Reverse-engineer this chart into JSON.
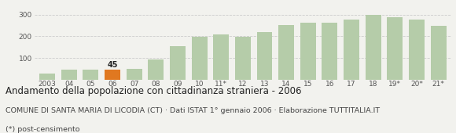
{
  "categories": [
    "2003",
    "04",
    "05",
    "06",
    "07",
    "08",
    "09",
    "10",
    "11*",
    "12",
    "13",
    "14",
    "15",
    "16",
    "17",
    "18",
    "19*",
    "20*",
    "21*"
  ],
  "values": [
    30,
    48,
    47,
    45,
    52,
    93,
    153,
    197,
    210,
    197,
    220,
    250,
    263,
    263,
    278,
    298,
    288,
    278,
    247
  ],
  "highlight_index": 3,
  "bar_color": "#b5cca9",
  "highlight_color": "#e07820",
  "highlight_label": "45",
  "ylim": [
    0,
    330
  ],
  "yticks": [
    0,
    100,
    200,
    300
  ],
  "title": "Andamento della popolazione con cittadinanza straniera - 2006",
  "subtitle": "COMUNE DI SANTA MARIA DI LICODIA (CT) · Dati ISTAT 1° gennaio 2006 · Elaborazione TUTTITALIA.IT",
  "footnote": "(*) post-censimento",
  "background_color": "#f2f2ee",
  "grid_color": "#cccccc",
  "title_fontsize": 8.5,
  "subtitle_fontsize": 6.8,
  "footnote_fontsize": 6.8,
  "tick_fontsize": 6.5,
  "ytick_fontsize": 6.5,
  "title_color": "#222222",
  "subtitle_color": "#444444",
  "tick_color": "#555555"
}
